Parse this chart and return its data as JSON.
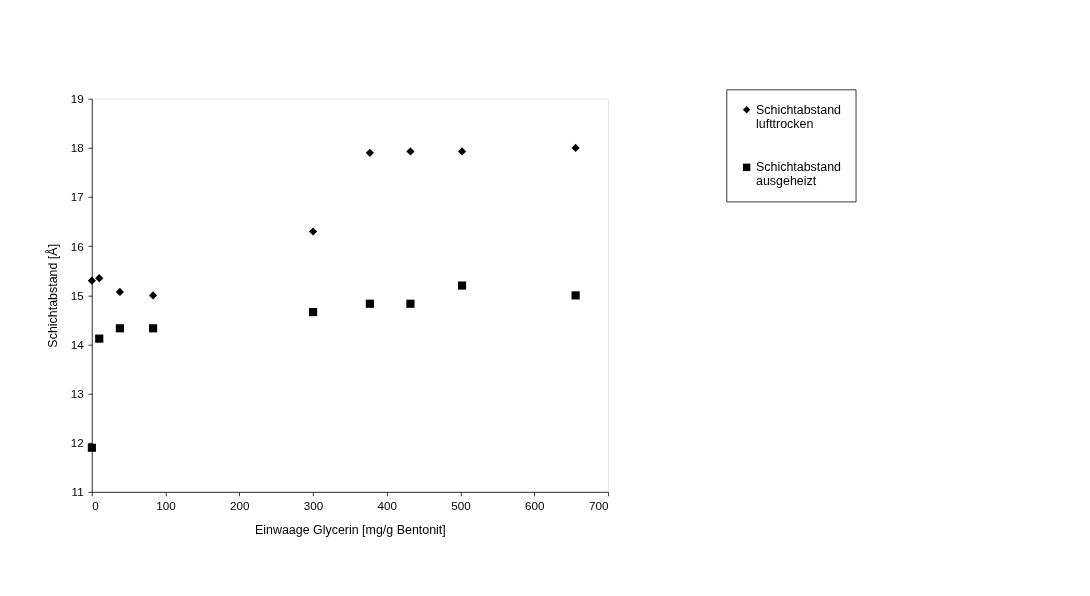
{
  "chart_data": {
    "type": "scatter",
    "xlabel": "Einwaage Glycerin [mg/g Bentonit]",
    "ylabel": "Schichtabstand [Å]",
    "xlim": [
      0,
      700
    ],
    "xticks": [
      0,
      100,
      200,
      300,
      400,
      500,
      600,
      700
    ],
    "ylim": [
      11,
      19
    ],
    "yticks": [
      11,
      12,
      13,
      14,
      15,
      16,
      17,
      18,
      19
    ],
    "grid": false,
    "legend": "right",
    "x": [
      0,
      10,
      38,
      83,
      300,
      377,
      432,
      502,
      656
    ],
    "series": [
      {
        "name": "Schichtabstand lufttrocken",
        "color": "#000000",
        "marker": "diamond",
        "values": [
          15.3,
          15.35,
          15.07,
          15.0,
          16.3,
          17.9,
          17.93,
          17.93,
          18.0
        ]
      },
      {
        "name": "Schichtabstand ausgeheizt",
        "color": "#000000",
        "marker": "square",
        "values": [
          11.9,
          14.12,
          14.33,
          14.33,
          14.66,
          14.83,
          14.83,
          15.2,
          15.0
        ]
      }
    ]
  }
}
